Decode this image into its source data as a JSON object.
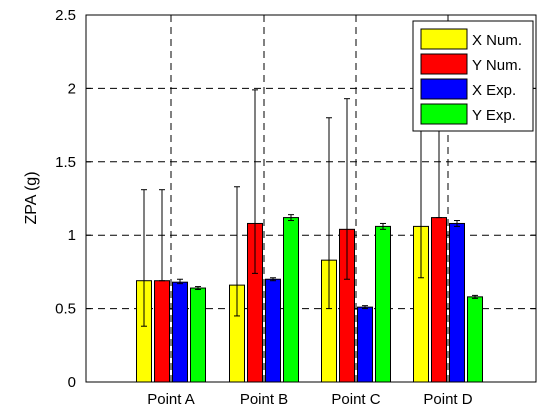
{
  "chart_data": {
    "type": "bar",
    "categories": [
      "Point A",
      "Point B",
      "Point C",
      "Point D"
    ],
    "ylabel": "ZPA (g)",
    "ylim": [
      0,
      2.5
    ],
    "yticks": [
      "0",
      "0.5",
      "1",
      "1.5",
      "2",
      "2.5"
    ],
    "grid": true,
    "legend_position": "top-right",
    "series": [
      {
        "name": "X Num.",
        "color": "#ffff00",
        "values": [
          0.69,
          0.66,
          0.83,
          1.06
        ],
        "err_low": [
          0.38,
          0.45,
          0.5,
          0.71
        ],
        "err_high": [
          1.31,
          1.33,
          1.8,
          2.0
        ]
      },
      {
        "name": "Y Num.",
        "color": "#ff0000",
        "values": [
          0.69,
          1.08,
          1.04,
          1.12
        ],
        "err_low": [
          0.69,
          0.74,
          0.7,
          1.12
        ],
        "err_high": [
          1.31,
          1.99,
          1.93,
          2.0
        ]
      },
      {
        "name": "X Exp.",
        "color": "#0000ff",
        "values": [
          0.68,
          0.7,
          0.51,
          1.08
        ],
        "err_low": [
          0.67,
          0.69,
          0.5,
          1.06
        ],
        "err_high": [
          0.7,
          0.71,
          0.52,
          1.1
        ]
      },
      {
        "name": "Y Exp.",
        "color": "#00ff00",
        "values": [
          0.64,
          1.12,
          1.06,
          0.58
        ],
        "err_low": [
          0.63,
          1.1,
          1.04,
          0.57
        ],
        "err_high": [
          0.65,
          1.14,
          1.08,
          0.59
        ]
      }
    ]
  }
}
